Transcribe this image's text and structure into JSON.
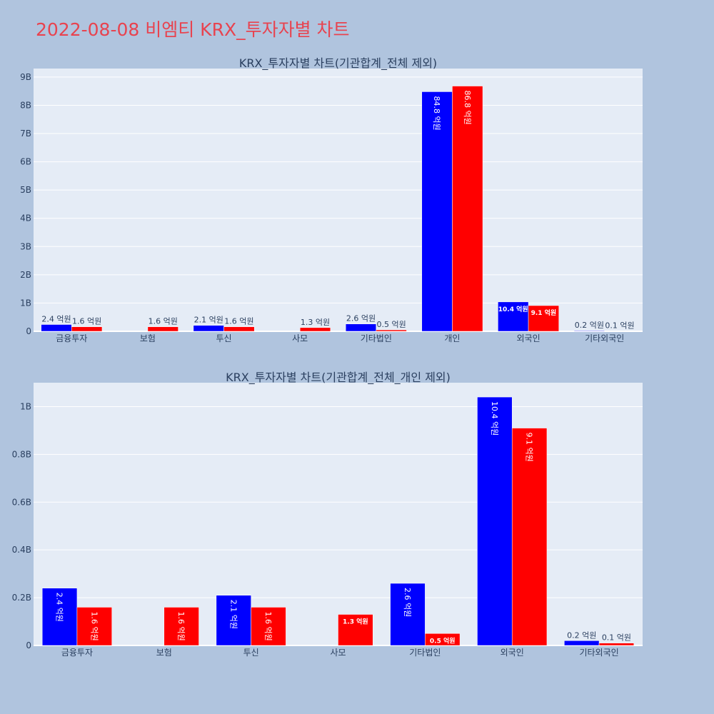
{
  "page_title": "2022-08-08 비엠티 KRX_투자자별 차트",
  "colors": {
    "series_a": "#0000ff",
    "series_b": "#ff0000",
    "title": "#e8434f",
    "plot_bg": "#e5ecf6",
    "page_bg": "#b0c4de"
  },
  "chart_data": [
    {
      "type": "bar",
      "title": "KRX_투자자별 차트(기관합계_전체 제외)",
      "categories": [
        "금융투자",
        "보험",
        "투신",
        "사모",
        "기타법인",
        "개인",
        "외국인",
        "기타외국인"
      ],
      "series": [
        {
          "values": [
            240000000,
            0,
            210000000,
            0,
            260000000,
            8480000000,
            1040000000,
            20000000
          ],
          "labels": [
            "2.4 억원",
            "",
            "2.1 억원",
            "",
            "2.6 억원",
            "84.8 억원",
            "10.4 억원",
            "0.2 억원"
          ]
        },
        {
          "values": [
            160000000,
            160000000,
            160000000,
            130000000,
            50000000,
            8680000000,
            910000000,
            10000000
          ],
          "labels": [
            "1.6 억원",
            "1.6 억원",
            "1.6 억원",
            "1.3 억원",
            "0.5 억원",
            "86.8 억원",
            "9.1 억원",
            "0.1 억원"
          ]
        }
      ],
      "ylim": [
        0,
        9300000000
      ],
      "yticks": [
        0,
        1000000000,
        2000000000,
        3000000000,
        4000000000,
        5000000000,
        6000000000,
        7000000000,
        8000000000,
        9000000000
      ],
      "ytick_labels": [
        "0",
        "1B",
        "2B",
        "3B",
        "4B",
        "5B",
        "6B",
        "7B",
        "8B",
        "9B"
      ],
      "grid": true
    },
    {
      "type": "bar",
      "title": "KRX_투자자별 차트(기관합계_전체_개인 제외)",
      "categories": [
        "금융투자",
        "보험",
        "투신",
        "사모",
        "기타법인",
        "외국인",
        "기타외국인"
      ],
      "series": [
        {
          "values": [
            240000000,
            0,
            210000000,
            0,
            260000000,
            1040000000,
            20000000
          ],
          "labels": [
            "2.4 억원",
            "",
            "2.1 억원",
            "",
            "2.6 억원",
            "10.4 억원",
            "0.2 억원"
          ]
        },
        {
          "values": [
            160000000,
            160000000,
            160000000,
            130000000,
            50000000,
            910000000,
            10000000
          ],
          "labels": [
            "1.6 억원",
            "1.6 억원",
            "1.6 억원",
            "1.3 억원",
            "0.5 억원",
            "9.1 억원",
            "0.1 억원"
          ]
        }
      ],
      "ylim": [
        0,
        1100000000
      ],
      "yticks": [
        0,
        200000000,
        400000000,
        600000000,
        800000000,
        1000000000
      ],
      "ytick_labels": [
        "0",
        "0.2B",
        "0.4B",
        "0.6B",
        "0.8B",
        "1B"
      ],
      "grid": true
    }
  ]
}
